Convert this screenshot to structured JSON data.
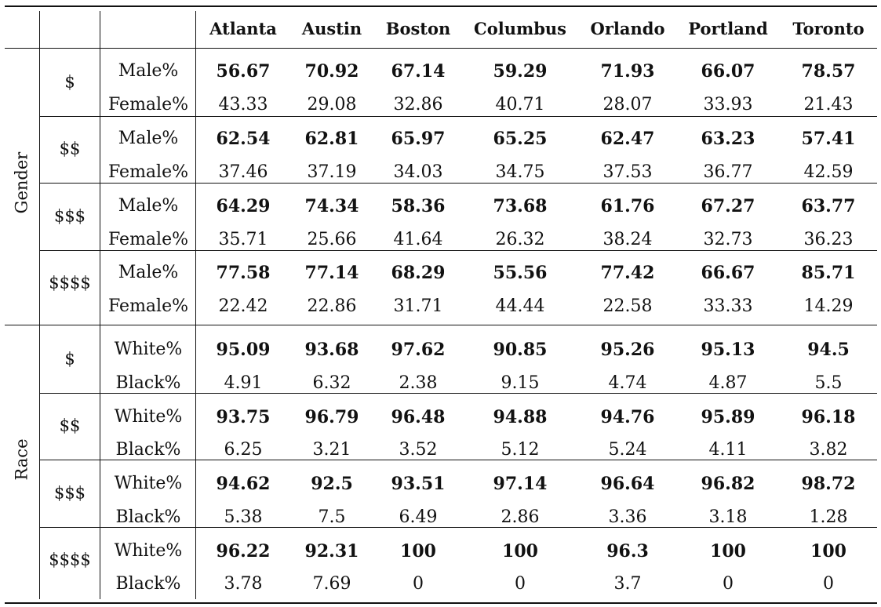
{
  "cities": [
    "Atlanta",
    "Austin",
    "Boston",
    "Columbus",
    "Orlando",
    "Portland",
    "Toronto"
  ],
  "groups": [
    {
      "label": "Gender",
      "tiers": [
        {
          "tier": "$",
          "rows": [
            {
              "label": "Male%",
              "values": [
                "56.67",
                "70.92",
                "67.14",
                "59.29",
                "71.93",
                "66.07",
                "78.57"
              ],
              "bold": true
            },
            {
              "label": "Female%",
              "values": [
                "43.33",
                "29.08",
                "32.86",
                "40.71",
                "28.07",
                "33.93",
                "21.43"
              ],
              "bold": false
            }
          ]
        },
        {
          "tier": "$$",
          "rows": [
            {
              "label": "Male%",
              "values": [
                "62.54",
                "62.81",
                "65.97",
                "65.25",
                "62.47",
                "63.23",
                "57.41"
              ],
              "bold": true
            },
            {
              "label": "Female%",
              "values": [
                "37.46",
                "37.19",
                "34.03",
                "34.75",
                "37.53",
                "36.77",
                "42.59"
              ],
              "bold": false
            }
          ]
        },
        {
          "tier": "$$$",
          "rows": [
            {
              "label": "Male%",
              "values": [
                "64.29",
                "74.34",
                "58.36",
                "73.68",
                "61.76",
                "67.27",
                "63.77"
              ],
              "bold": true
            },
            {
              "label": "Female%",
              "values": [
                "35.71",
                "25.66",
                "41.64",
                "26.32",
                "38.24",
                "32.73",
                "36.23"
              ],
              "bold": false
            }
          ]
        },
        {
          "tier": "$$$$",
          "rows": [
            {
              "label": "Male%",
              "values": [
                "77.58",
                "77.14",
                "68.29",
                "55.56",
                "77.42",
                "66.67",
                "85.71"
              ],
              "bold": true
            },
            {
              "label": "Female%",
              "values": [
                "22.42",
                "22.86",
                "31.71",
                "44.44",
                "22.58",
                "33.33",
                "14.29"
              ],
              "bold": false
            }
          ]
        }
      ]
    },
    {
      "label": "Race",
      "tiers": [
        {
          "tier": "$",
          "rows": [
            {
              "label": "White%",
              "values": [
                "95.09",
                "93.68",
                "97.62",
                "90.85",
                "95.26",
                "95.13",
                "94.5"
              ],
              "bold": true
            },
            {
              "label": "Black%",
              "values": [
                "4.91",
                "6.32",
                "2.38",
                "9.15",
                "4.74",
                "4.87",
                "5.5"
              ],
              "bold": false
            }
          ]
        },
        {
          "tier": "$$",
          "rows": [
            {
              "label": "White%",
              "values": [
                "93.75",
                "96.79",
                "96.48",
                "94.88",
                "94.76",
                "95.89",
                "96.18"
              ],
              "bold": true
            },
            {
              "label": "Black%",
              "values": [
                "6.25",
                "3.21",
                "3.52",
                "5.12",
                "5.24",
                "4.11",
                "3.82"
              ],
              "bold": false
            }
          ]
        },
        {
          "tier": "$$$",
          "rows": [
            {
              "label": "White%",
              "values": [
                "94.62",
                "92.5",
                "93.51",
                "97.14",
                "96.64",
                "96.82",
                "98.72"
              ],
              "bold": true
            },
            {
              "label": "Black%",
              "values": [
                "5.38",
                "7.5",
                "6.49",
                "2.86",
                "3.36",
                "3.18",
                "1.28"
              ],
              "bold": false
            }
          ]
        },
        {
          "tier": "$$$$",
          "rows": [
            {
              "label": "White%",
              "values": [
                "96.22",
                "92.31",
                "100",
                "100",
                "96.3",
                "100",
                "100"
              ],
              "bold": true
            },
            {
              "label": "Black%",
              "values": [
                "3.78",
                "7.69",
                "0",
                "0",
                "3.7",
                "0",
                "0"
              ],
              "bold": false
            }
          ]
        }
      ]
    }
  ]
}
